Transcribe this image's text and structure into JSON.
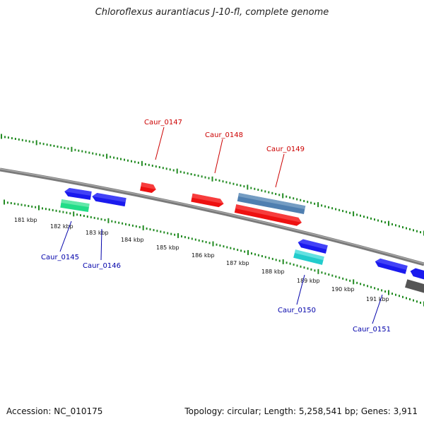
{
  "title": "Chloroflexus aurantiacus J-10-fl, complete genome",
  "footer": {
    "accession": "Accession: NC_010175",
    "summary": "Topology: circular; Length: 5,258,541 bp; Genes: 3,911"
  },
  "colors": {
    "backbone": "#808080",
    "ticks": "#228B22",
    "forward_label": "#cc0000",
    "reverse_label": "#0000aa",
    "red_gene": "#ee1111",
    "blue_gene": "#1a1aee",
    "steel_gene": "#4f7fb0",
    "green_gene": "#22dd88",
    "cyan_gene": "#22cccc",
    "gray_gene": "#555555"
  },
  "scale": {
    "unit": "kbp",
    "labels": [
      "181 kbp",
      "182 kbp",
      "183 kbp",
      "184 kbp",
      "185 kbp",
      "186 kbp",
      "187 kbp",
      "188 kbp",
      "189 kbp",
      "190 kbp",
      "191 kbp"
    ]
  },
  "gene_labels": {
    "forward": [
      "Caur_0147",
      "Caur_0148",
      "Caur_0149"
    ],
    "reverse": [
      "Caur_0145",
      "Caur_0146",
      "Caur_0150",
      "Caur_0151"
    ]
  }
}
